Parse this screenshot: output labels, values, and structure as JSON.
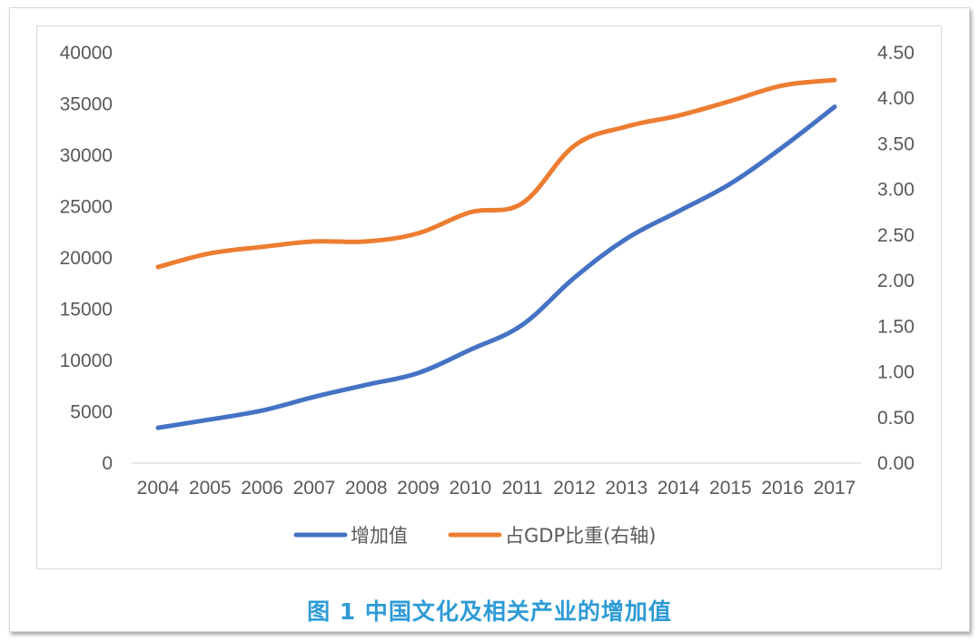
{
  "caption": "图 1 中国文化及相关产业的增加值",
  "colors": {
    "series1": "#4472c4",
    "series2": "#ed7d31",
    "caption": "#2e9bd6"
  },
  "chart_data": {
    "type": "line",
    "x": [
      "2004",
      "2005",
      "2006",
      "2007",
      "2008",
      "2009",
      "2010",
      "2011",
      "2012",
      "2013",
      "2014",
      "2015",
      "2016",
      "2017"
    ],
    "series": [
      {
        "name": "增加值",
        "axis": "left",
        "values": [
          3440,
          4253,
          5123,
          6455,
          7630,
          8786,
          11052,
          13479,
          18071,
          21870,
          24538,
          27235,
          30785,
          34722
        ]
      },
      {
        "name": "占GDP比重(右轴)",
        "axis": "right",
        "values": [
          2.15,
          2.3,
          2.37,
          2.43,
          2.43,
          2.52,
          2.75,
          2.85,
          3.48,
          3.69,
          3.81,
          3.97,
          4.14,
          4.2
        ]
      }
    ],
    "y_left": {
      "range": [
        0,
        40000
      ],
      "ticks": [
        "0",
        "5000",
        "10000",
        "15000",
        "20000",
        "25000",
        "30000",
        "35000",
        "40000"
      ]
    },
    "y_right": {
      "range": [
        0,
        4.5
      ],
      "ticks": [
        "0.00",
        "0.50",
        "1.00",
        "1.50",
        "2.00",
        "2.50",
        "3.00",
        "3.50",
        "4.00",
        "4.50"
      ]
    },
    "grid": false,
    "legend_position": "bottom"
  }
}
